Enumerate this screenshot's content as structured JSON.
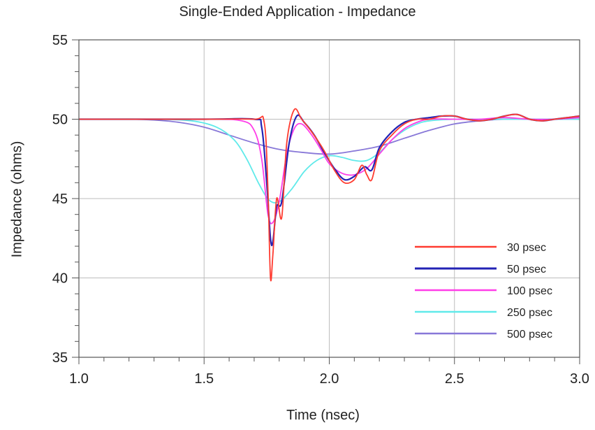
{
  "chart_data": {
    "type": "line",
    "title": "Single-Ended Application - Impedance",
    "xlabel": "Time (nsec)",
    "ylabel": "Impedance (ohms)",
    "xlim": [
      1.0,
      3.0
    ],
    "ylim": [
      35,
      55
    ],
    "xticks": [
      1.0,
      1.5,
      2.0,
      2.5,
      3.0
    ],
    "xtick_labels": [
      "1.0",
      "1.5",
      "2.0",
      "2.5",
      "3.0"
    ],
    "yticks": [
      35,
      40,
      45,
      50,
      55
    ],
    "ytick_labels": [
      "35",
      "40",
      "45",
      "50",
      "55"
    ],
    "grid": true,
    "legend_position": "bottom-right",
    "series": [
      {
        "name": "30 psec",
        "color": "#ff3b30",
        "x": [
          1.0,
          1.5,
          1.7,
          1.74,
          1.755,
          1.765,
          1.775,
          1.79,
          1.81,
          1.83,
          1.86,
          1.89,
          1.93,
          1.98,
          2.02,
          2.06,
          2.1,
          2.13,
          2.15,
          2.17,
          2.2,
          2.25,
          2.3,
          2.35,
          2.4,
          2.45,
          2.5,
          2.55,
          2.6,
          2.65,
          2.7,
          2.75,
          2.8,
          2.85,
          2.9,
          2.95,
          3.0
        ],
        "y": [
          50.0,
          50.0,
          50.0,
          49.8,
          45.5,
          40.0,
          41.5,
          45.0,
          43.8,
          48.5,
          50.6,
          50.0,
          49.2,
          48.0,
          46.8,
          46.0,
          46.2,
          47.1,
          46.5,
          46.2,
          48.0,
          49.0,
          49.7,
          50.0,
          50.0,
          50.2,
          50.2,
          50.0,
          49.9,
          50.0,
          50.2,
          50.3,
          50.0,
          49.9,
          50.0,
          50.1,
          50.2
        ]
      },
      {
        "name": "50 psec",
        "color": "#2323b5",
        "x": [
          1.0,
          1.5,
          1.7,
          1.73,
          1.75,
          1.765,
          1.775,
          1.79,
          1.81,
          1.84,
          1.87,
          1.9,
          1.94,
          1.98,
          2.02,
          2.06,
          2.1,
          2.14,
          2.17,
          2.2,
          2.25,
          2.3,
          2.35,
          2.4,
          2.45,
          2.5,
          2.55,
          2.6,
          2.65,
          2.7,
          2.75,
          2.8,
          2.85,
          2.9,
          2.95,
          3.0
        ],
        "y": [
          50.0,
          50.0,
          50.0,
          49.5,
          46.0,
          42.5,
          42.3,
          44.5,
          44.8,
          48.5,
          50.2,
          49.8,
          49.0,
          47.9,
          46.9,
          46.2,
          46.4,
          47.0,
          46.8,
          48.2,
          49.2,
          49.8,
          50.0,
          50.1,
          50.2,
          50.2,
          50.0,
          49.9,
          50.0,
          50.2,
          50.3,
          50.0,
          49.9,
          50.0,
          50.1,
          50.2
        ]
      },
      {
        "name": "100 psec",
        "color": "#ff3ee8",
        "x": [
          1.0,
          1.5,
          1.65,
          1.7,
          1.73,
          1.755,
          1.775,
          1.8,
          1.83,
          1.86,
          1.89,
          1.93,
          1.97,
          2.0,
          2.05,
          2.1,
          2.15,
          2.2,
          2.25,
          2.3,
          2.35,
          2.4,
          2.5,
          2.6,
          2.7,
          2.8,
          2.9,
          3.0
        ],
        "y": [
          50.0,
          50.0,
          49.9,
          49.3,
          47.5,
          44.0,
          43.5,
          44.8,
          47.8,
          49.4,
          49.7,
          49.0,
          48.0,
          47.2,
          46.6,
          46.5,
          46.9,
          47.8,
          48.7,
          49.4,
          49.8,
          50.0,
          50.0,
          50.0,
          50.1,
          50.0,
          50.0,
          50.1
        ]
      },
      {
        "name": "250 psec",
        "color": "#60eaea",
        "x": [
          1.0,
          1.3,
          1.45,
          1.55,
          1.62,
          1.67,
          1.72,
          1.76,
          1.8,
          1.85,
          1.9,
          1.95,
          2.0,
          2.05,
          2.1,
          2.15,
          2.2,
          2.25,
          2.3,
          2.35,
          2.4,
          2.5,
          2.6,
          2.7,
          2.8,
          2.9,
          3.0
        ],
        "y": [
          50.0,
          50.0,
          49.9,
          49.5,
          48.7,
          47.5,
          45.9,
          44.9,
          44.8,
          45.6,
          46.7,
          47.4,
          47.7,
          47.6,
          47.4,
          47.4,
          47.9,
          48.7,
          49.3,
          49.7,
          49.9,
          50.0,
          50.0,
          50.0,
          50.0,
          50.0,
          50.0
        ]
      },
      {
        "name": "500 psec",
        "color": "#8878d8",
        "x": [
          1.0,
          1.2,
          1.3,
          1.4,
          1.5,
          1.6,
          1.7,
          1.8,
          1.9,
          2.0,
          2.1,
          2.2,
          2.3,
          2.4,
          2.5,
          2.6,
          2.7,
          2.8,
          2.9,
          3.0
        ],
        "y": [
          50.0,
          50.0,
          49.95,
          49.8,
          49.5,
          49.0,
          48.5,
          48.1,
          47.9,
          47.8,
          48.0,
          48.3,
          48.8,
          49.3,
          49.7,
          49.9,
          50.0,
          50.0,
          50.0,
          50.0
        ]
      }
    ]
  }
}
